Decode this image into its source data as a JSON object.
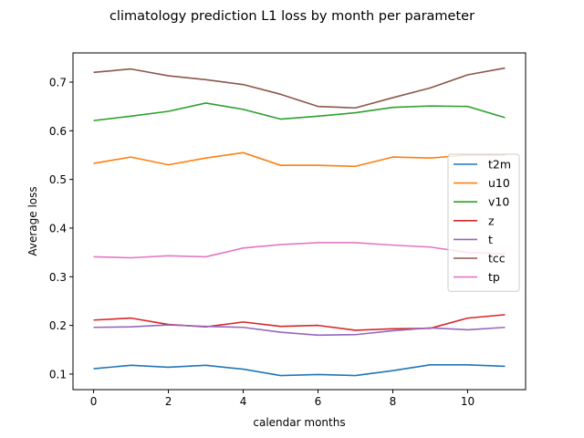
{
  "chart_data": {
    "type": "line",
    "title": "climatology prediction L1 loss by month per parameter",
    "xlabel": "calendar months",
    "ylabel": "Average loss",
    "x": [
      0,
      1,
      2,
      3,
      4,
      5,
      6,
      7,
      8,
      9,
      10,
      11
    ],
    "xlim": [
      -0.55,
      11.55
    ],
    "ylim": [
      0.068,
      0.76
    ],
    "xticks": [
      0,
      2,
      4,
      6,
      8,
      10
    ],
    "xtick_labels": [
      "0",
      "2",
      "4",
      "6",
      "8",
      "10"
    ],
    "yticks": [
      0.1,
      0.2,
      0.3,
      0.4,
      0.5,
      0.6,
      0.7
    ],
    "ytick_labels": [
      "0.1",
      "0.2",
      "0.3",
      "0.4",
      "0.5",
      "0.6",
      "0.7"
    ],
    "grid": false,
    "legend_position": "center-right",
    "series": [
      {
        "name": "t2m",
        "color": "#1f77b4",
        "values": [
          0.111,
          0.118,
          0.114,
          0.118,
          0.11,
          0.097,
          0.099,
          0.097,
          0.107,
          0.119,
          0.119,
          0.116
        ]
      },
      {
        "name": "u10",
        "color": "#ff7f0e",
        "values": [
          0.533,
          0.546,
          0.53,
          0.544,
          0.555,
          0.529,
          0.529,
          0.527,
          0.546,
          0.544,
          0.55,
          0.55
        ]
      },
      {
        "name": "v10",
        "color": "#2ca02c",
        "values": [
          0.621,
          0.63,
          0.64,
          0.657,
          0.644,
          0.624,
          0.63,
          0.637,
          0.648,
          0.651,
          0.65,
          0.627
        ]
      },
      {
        "name": "z",
        "color": "#d62728",
        "values": [
          0.211,
          0.215,
          0.202,
          0.197,
          0.207,
          0.198,
          0.2,
          0.19,
          0.193,
          0.194,
          0.215,
          0.222
        ]
      },
      {
        "name": "t",
        "color": "#9467bd",
        "values": [
          0.196,
          0.197,
          0.201,
          0.198,
          0.196,
          0.186,
          0.18,
          0.181,
          0.189,
          0.195,
          0.191,
          0.196
        ]
      },
      {
        "name": "tcc",
        "color": "#8c564b",
        "values": [
          0.72,
          0.727,
          0.713,
          0.705,
          0.695,
          0.675,
          0.65,
          0.647,
          0.668,
          0.688,
          0.715,
          0.729
        ]
      },
      {
        "name": "tp",
        "color": "#e377c2",
        "values": [
          0.341,
          0.339,
          0.343,
          0.341,
          0.359,
          0.366,
          0.37,
          0.37,
          0.365,
          0.361,
          0.35,
          0.347
        ]
      }
    ]
  }
}
